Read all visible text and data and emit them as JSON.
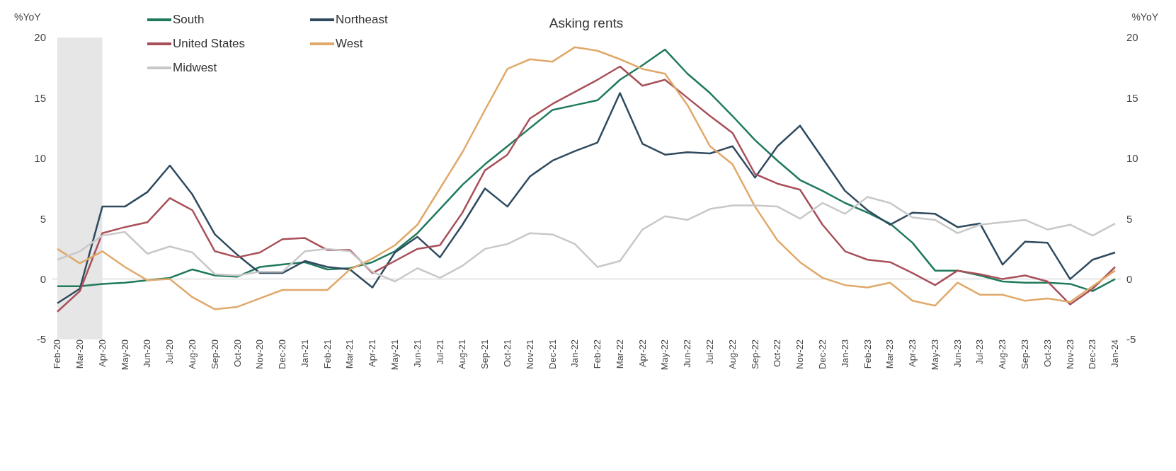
{
  "chart_data": {
    "type": "line",
    "title": "Asking rents",
    "ylabel": "%YoY",
    "y2label": "%YoY",
    "categories": [
      "Feb-20",
      "Mar-20",
      "Apr-20",
      "May-20",
      "Jun-20",
      "Jul-20",
      "Aug-20",
      "Sep-20",
      "Oct-20",
      "Nov-20",
      "Dec-20",
      "Jan-21",
      "Feb-21",
      "Mar-21",
      "Apr-21",
      "May-21",
      "Jun-21",
      "Jul-21",
      "Aug-21",
      "Sep-21",
      "Oct-21",
      "Nov-21",
      "Dec-21",
      "Jan-22",
      "Feb-22",
      "Mar-22",
      "Apr-22",
      "May-22",
      "Jun-22",
      "Jul-22",
      "Aug-22",
      "Sep-22",
      "Oct-22",
      "Nov-22",
      "Dec-22",
      "Jan-23",
      "Feb-23",
      "Mar-23",
      "Apr-23",
      "May-23",
      "Jun-23",
      "Jul-23",
      "Aug-23",
      "Sep-23",
      "Oct-23",
      "Nov-23",
      "Dec-23",
      "Jan-24"
    ],
    "series": [
      {
        "name": "South",
        "color": "#1f7a5c",
        "values": [
          -0.6,
          -0.6,
          -0.4,
          -0.3,
          -0.1,
          0.1,
          0.8,
          0.3,
          0.2,
          1.0,
          1.2,
          1.4,
          0.8,
          0.9,
          1.4,
          2.3,
          3.8,
          5.8,
          7.8,
          9.5,
          11.0,
          12.5,
          14.0,
          14.4,
          14.8,
          16.5,
          17.7,
          19.0,
          17.0,
          15.4,
          13.5,
          11.5,
          9.8,
          8.2,
          7.3,
          6.3,
          5.5,
          4.6,
          3.0,
          0.7,
          0.7,
          0.3,
          -0.2,
          -0.3,
          -0.3,
          -0.4,
          -1.0,
          0.0
        ]
      },
      {
        "name": "Northeast",
        "color": "#2f4a5e",
        "values": [
          -2.0,
          -0.8,
          6.0,
          6.0,
          7.2,
          9.4,
          7.0,
          3.7,
          2.0,
          0.5,
          0.5,
          1.5,
          1.0,
          0.8,
          -0.7,
          2.2,
          3.5,
          1.8,
          4.5,
          7.5,
          6.0,
          8.5,
          9.8,
          10.6,
          11.3,
          15.4,
          11.2,
          10.3,
          10.5,
          10.4,
          11.0,
          8.4,
          11.0,
          12.7,
          10.0,
          7.3,
          5.7,
          4.5,
          5.5,
          5.4,
          4.3,
          4.6,
          1.2,
          3.1,
          3.0,
          0.0,
          1.6,
          2.2
        ]
      },
      {
        "name": "United States",
        "color": "#a8505a",
        "values": [
          -2.7,
          -1.0,
          3.8,
          4.3,
          4.7,
          6.7,
          5.7,
          2.3,
          1.8,
          2.2,
          3.3,
          3.4,
          2.4,
          2.4,
          0.5,
          1.5,
          2.5,
          2.8,
          5.5,
          9.0,
          10.3,
          13.3,
          14.5,
          15.5,
          16.5,
          17.6,
          16.0,
          16.5,
          15.0,
          13.5,
          12.1,
          8.7,
          7.9,
          7.4,
          4.5,
          2.3,
          1.6,
          1.4,
          0.5,
          -0.5,
          0.7,
          0.4,
          0.0,
          0.3,
          -0.2,
          -2.1,
          -0.8,
          1.0
        ]
      },
      {
        "name": "West",
        "color": "#e0a96a",
        "values": [
          2.5,
          1.3,
          2.3,
          1.0,
          -0.1,
          0.0,
          -1.5,
          -2.5,
          -2.3,
          -1.6,
          -0.9,
          -0.9,
          -0.9,
          0.8,
          1.7,
          2.8,
          4.5,
          7.5,
          10.5,
          14.0,
          17.4,
          18.2,
          18.0,
          19.2,
          18.9,
          18.2,
          17.4,
          17.0,
          14.4,
          11.0,
          9.5,
          6.0,
          3.2,
          1.4,
          0.1,
          -0.5,
          -0.7,
          -0.3,
          -1.8,
          -2.2,
          -0.3,
          -1.3,
          -1.3,
          -1.8,
          -1.6,
          -1.9,
          -0.6,
          0.7
        ]
      },
      {
        "name": "Midwest",
        "color": "#c8c8c8",
        "values": [
          1.6,
          2.3,
          3.6,
          3.9,
          2.1,
          2.7,
          2.2,
          0.4,
          0.3,
          0.6,
          0.6,
          2.3,
          2.5,
          2.3,
          0.6,
          -0.2,
          0.9,
          0.1,
          1.1,
          2.5,
          2.9,
          3.8,
          3.7,
          2.9,
          1.0,
          1.5,
          4.1,
          5.2,
          4.9,
          5.8,
          6.1,
          6.1,
          6.0,
          5.0,
          6.3,
          5.4,
          6.8,
          6.3,
          5.1,
          4.9,
          3.8,
          4.5,
          4.7,
          4.9,
          4.1,
          4.5,
          3.6,
          4.6
        ]
      }
    ],
    "ylim": [
      -5,
      20
    ],
    "yticks": [
      -5,
      0,
      5,
      10,
      15,
      20
    ],
    "y2lim": [
      -5,
      20
    ],
    "y2ticks": [
      -5,
      0,
      5,
      10,
      15,
      20
    ],
    "ref_lines": [
      {
        "axis": "y",
        "value": 0,
        "color": "#e6e6e6"
      }
    ],
    "bands": [
      {
        "axis": "x",
        "from": "Feb-20",
        "to": "Apr-20",
        "color": "#e6e6e6"
      }
    ],
    "grid": false,
    "legend": "top left",
    "marker": "none",
    "line_style": "solid"
  }
}
